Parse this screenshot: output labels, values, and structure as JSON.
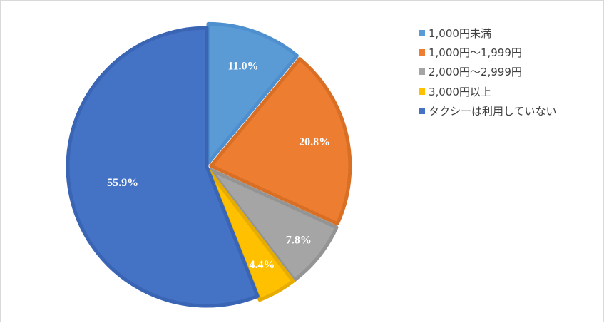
{
  "chart_data": {
    "type": "pie",
    "title": "",
    "start_angle_deg": 0,
    "direction": "clockwise",
    "legend_position": "right",
    "categories": [
      "1,000円未満",
      "1,000円～1,999円",
      "2,000円～2,999円",
      "3,000円以上",
      "タクシーは利用していない"
    ],
    "values": [
      11.0,
      20.8,
      7.8,
      4.4,
      55.9
    ],
    "labels": [
      "11.0%",
      "20.8%",
      "7.8%",
      "4.4%",
      "55.9%"
    ],
    "colors": [
      "#5B9BD5",
      "#ED7D31",
      "#A5A5A5",
      "#FFC000",
      "#4472C4"
    ],
    "border_colors": [
      "#4E8FCF",
      "#D96F24",
      "#949494",
      "#E6AD00",
      "#3A65B5"
    ]
  }
}
